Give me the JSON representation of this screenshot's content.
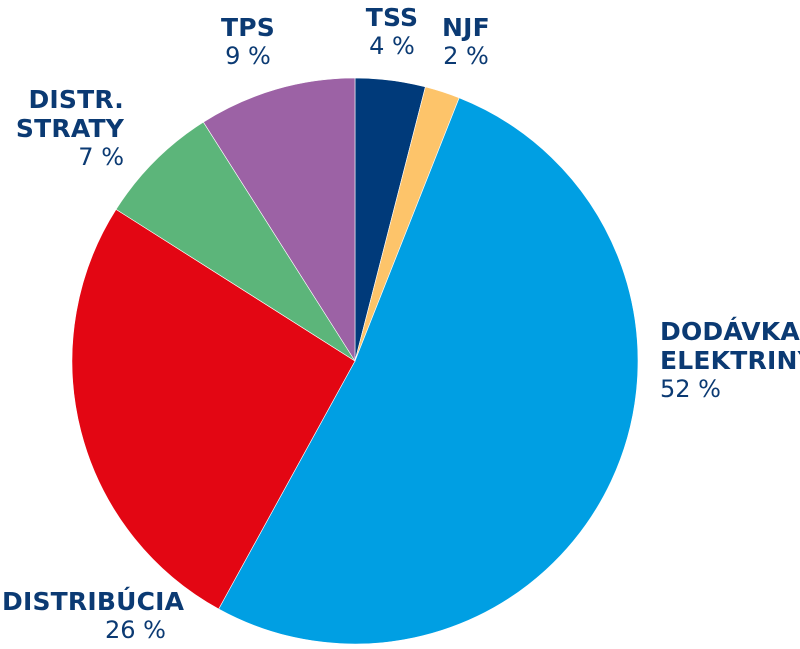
{
  "chart_data": {
    "type": "pie",
    "slices": [
      {
        "label": "TSS",
        "label_lines": [
          "TSS"
        ],
        "value": 4,
        "value_label": "4 %",
        "color": "#003a7a"
      },
      {
        "label": "NJF",
        "label_lines": [
          "NJF"
        ],
        "value": 2,
        "value_label": "2 %",
        "color": "#fdc46a"
      },
      {
        "label": "DODÁVKA ELEKTRINY",
        "label_lines": [
          "DODÁVKA",
          "ELEKTRINY"
        ],
        "value": 52,
        "value_label": "52 %",
        "color": "#009fe3"
      },
      {
        "label": "DISTRIBÚCIA",
        "label_lines": [
          "DISTRIBÚCIA"
        ],
        "value": 26,
        "value_label": "26 %",
        "color": "#e30613"
      },
      {
        "label": "DISTR. STRATY",
        "label_lines": [
          "DISTR.",
          "STRATY"
        ],
        "value": 7,
        "value_label": "7 %",
        "color": "#5cb57a"
      },
      {
        "label": "TPS",
        "label_lines": [
          "TPS"
        ],
        "value": 9,
        "value_label": "9 %",
        "color": "#9c62a5"
      }
    ],
    "start_angle": "12 o'clock",
    "direction": "clockwise",
    "legend": "none",
    "label_color": "#0b3a73"
  }
}
